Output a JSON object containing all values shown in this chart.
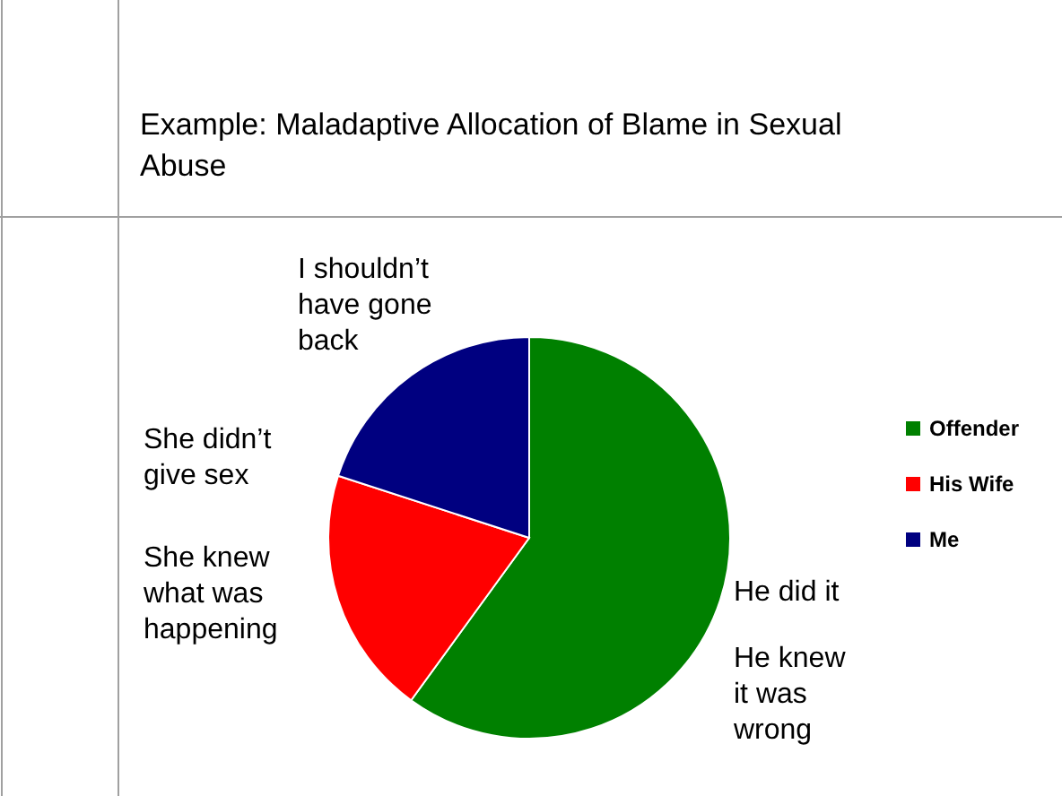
{
  "chart_data": {
    "type": "pie",
    "title": "Example: Maladaptive Allocation of Blame in Sexual Abuse",
    "categories": [
      "Offender",
      "His Wife",
      "Me"
    ],
    "values": [
      60,
      20,
      20
    ],
    "colors": [
      "#008000",
      "#ff0000",
      "#000080"
    ],
    "legend": "right",
    "annotations": [
      "I shouldn’t have gone back",
      "She didn’t give sex",
      "She knew what was happening",
      "He did it",
      "He knew it was wrong"
    ]
  }
}
